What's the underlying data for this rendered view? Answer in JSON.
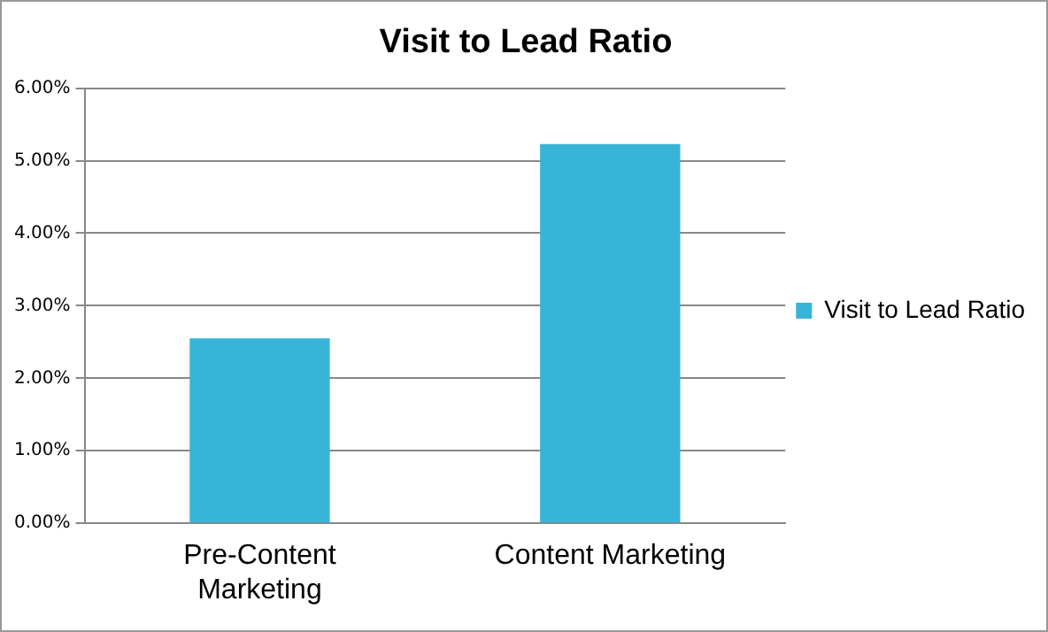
{
  "chart_data": {
    "type": "bar",
    "title": "Visit to Lead Ratio",
    "categories": [
      "Pre-Content Marketing",
      "Content Marketing"
    ],
    "series": [
      {
        "name": "Visit to Lead Ratio",
        "color": "#38b4d8",
        "values": [
          2.55,
          5.23
        ]
      }
    ],
    "ylim": [
      0,
      6
    ],
    "yticks": [
      {
        "value": 0,
        "label": "0.00%"
      },
      {
        "value": 1,
        "label": "1.00%"
      },
      {
        "value": 2,
        "label": "2.00%"
      },
      {
        "value": 3,
        "label": "3.00%"
      },
      {
        "value": 4,
        "label": "4.00%"
      },
      {
        "value": 5,
        "label": "5.00%"
      },
      {
        "value": 6,
        "label": "6.00%"
      }
    ],
    "grid": "y",
    "legend": "right"
  }
}
